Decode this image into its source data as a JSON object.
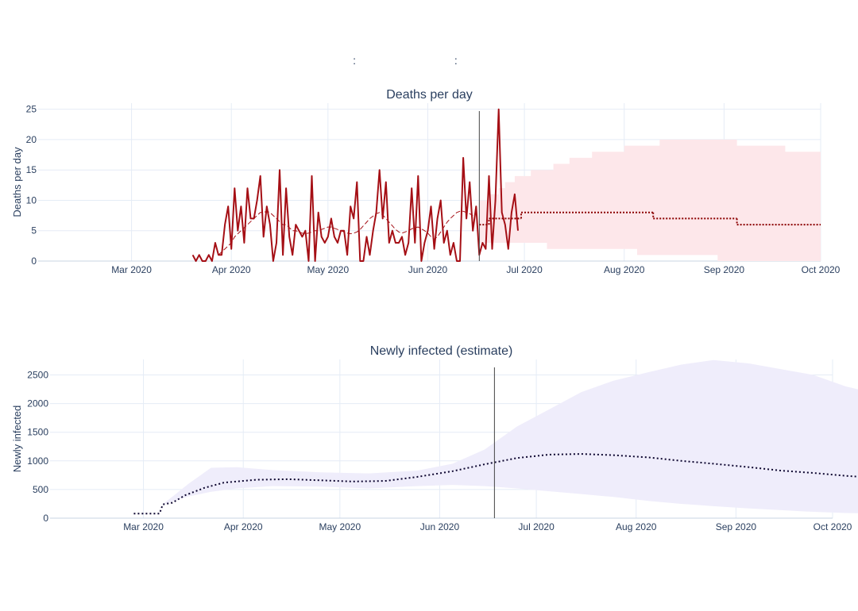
{
  "page": {
    "title": ":      :"
  },
  "chart_data": [
    {
      "type": "line",
      "title": "Deaths per day",
      "ylabel": "Deaths per day",
      "xlabel": "",
      "xrange": [
        "2020-02-01",
        "2020-10-01"
      ],
      "ylim": [
        0,
        26
      ],
      "y_ticks": [
        0,
        5,
        10,
        15,
        20,
        25
      ],
      "x_ticks": [
        {
          "date": "2020-03-01",
          "label": "Mar 2020"
        },
        {
          "date": "2020-04-01",
          "label": "Apr 2020"
        },
        {
          "date": "2020-05-01",
          "label": "May 2020"
        },
        {
          "date": "2020-06-01",
          "label": "Jun 2020"
        },
        {
          "date": "2020-07-01",
          "label": "Jul 2020"
        },
        {
          "date": "2020-08-01",
          "label": "Aug 2020"
        },
        {
          "date": "2020-09-01",
          "label": "Sep 2020"
        },
        {
          "date": "2020-10-01",
          "label": "Oct 2020"
        }
      ],
      "vline_date": "2020-06-17",
      "grid": true,
      "colors": {
        "observed": "#a50f15",
        "projection": "#8b0000",
        "band": "#fde7ea"
      },
      "series": [
        {
          "style": "solid",
          "start": "2020-03-20",
          "values": [
            1,
            0,
            1,
            0,
            0,
            1,
            0,
            3,
            1,
            1,
            6,
            9,
            2,
            12,
            5,
            9,
            3,
            12,
            7,
            7,
            10,
            14,
            4,
            9,
            6,
            0,
            3,
            15,
            1,
            12,
            4,
            1,
            6,
            5,
            4,
            5,
            0,
            14,
            0,
            8,
            4,
            3,
            4,
            7,
            4,
            3,
            5,
            5,
            1,
            9,
            7,
            13,
            0,
            0,
            4,
            1,
            5,
            8,
            15,
            7,
            13,
            3,
            5,
            3,
            3,
            4,
            1,
            3,
            12,
            3,
            14,
            0,
            3,
            5,
            9,
            2,
            7,
            10,
            3,
            5,
            1,
            3,
            0,
            0,
            17,
            7,
            13,
            5,
            9,
            1,
            3,
            2,
            14,
            2,
            10,
            25,
            8,
            6,
            2,
            8,
            11,
            5
          ]
        },
        {
          "style": "dashed",
          "start": "2020-03-28",
          "values": [
            1,
            1.5,
            2,
            2.5,
            3,
            4,
            4.5,
            5,
            5.5,
            6,
            6.5,
            7,
            7.5,
            8,
            8,
            8.2,
            8,
            7.5,
            7,
            6.5,
            6,
            6,
            5.5,
            5,
            5,
            4.8,
            4.6,
            4.5,
            4.6,
            4.8,
            5,
            5,
            5.2,
            5.4,
            5.6,
            5.6,
            5.4,
            5.2,
            5,
            4.8,
            4.6,
            4.5,
            4.6,
            4.8,
            5.2,
            5.8,
            6.4,
            7,
            7.4,
            7.8,
            8,
            7.6,
            7,
            6.4,
            5.8,
            5.2,
            4.8,
            4.6,
            4.8,
            5,
            5.3,
            5.5,
            5.6,
            5.3,
            5,
            4.6,
            4,
            3.6,
            4,
            4.8,
            5.6,
            6.4,
            7,
            7.5,
            8,
            8.2,
            8.2,
            8,
            7.8,
            7.5
          ]
        }
      ],
      "projection": [
        {
          "from": "2020-06-17",
          "to": "2020-06-20",
          "value": 6
        },
        {
          "from": "2020-06-20",
          "to": "2020-06-30",
          "value": 7
        },
        {
          "from": "2020-06-30",
          "to": "2020-08-10",
          "value": 8
        },
        {
          "from": "2020-08-10",
          "to": "2020-09-05",
          "value": 7
        },
        {
          "from": "2020-09-05",
          "to": "2020-10-01",
          "value": 6
        }
      ],
      "band": {
        "upper": [
          [
            "2020-06-17",
            10
          ],
          [
            "2020-06-20",
            11
          ],
          [
            "2020-06-23",
            12
          ],
          [
            "2020-06-25",
            13
          ],
          [
            "2020-06-28",
            14
          ],
          [
            "2020-07-03",
            15
          ],
          [
            "2020-07-10",
            16
          ],
          [
            "2020-07-15",
            17
          ],
          [
            "2020-07-22",
            18
          ],
          [
            "2020-08-01",
            19
          ],
          [
            "2020-08-12",
            20
          ],
          [
            "2020-09-05",
            19
          ],
          [
            "2020-09-20",
            18
          ],
          [
            "2020-09-30",
            18
          ],
          [
            "2020-10-01",
            17
          ]
        ],
        "lower": [
          [
            "2020-06-17",
            3
          ],
          [
            "2020-07-08",
            2
          ],
          [
            "2020-08-05",
            1
          ],
          [
            "2020-08-30",
            0
          ],
          [
            "2020-10-01",
            0
          ]
        ]
      }
    },
    {
      "type": "line",
      "title": "Newly infected (estimate)",
      "ylabel": "Newly infected",
      "xlabel": "",
      "xrange": [
        "2020-02-01",
        "2020-10-01"
      ],
      "ylim": [
        0,
        2770
      ],
      "y_ticks": [
        0,
        500,
        1000,
        1500,
        2000,
        2500
      ],
      "x_ticks": [
        {
          "date": "2020-03-01",
          "label": "Mar 2020"
        },
        {
          "date": "2020-04-01",
          "label": "Apr 2020"
        },
        {
          "date": "2020-05-01",
          "label": "May 2020"
        },
        {
          "date": "2020-06-01",
          "label": "Jun 2020"
        },
        {
          "date": "2020-07-01",
          "label": "Jul 2020"
        },
        {
          "date": "2020-08-01",
          "label": "Aug 2020"
        },
        {
          "date": "2020-09-01",
          "label": "Sep 2020"
        },
        {
          "date": "2020-10-01",
          "label": "Oct 2020"
        }
      ],
      "vline_date": "2020-06-18",
      "grid": true,
      "colors": {
        "estimate": "#0d0630",
        "band": "#efedfb"
      },
      "series": [
        {
          "style": "dotted",
          "points": [
            [
              "2020-02-27",
              80
            ],
            [
              "2020-03-06",
              80
            ],
            [
              "2020-03-07",
              240
            ],
            [
              "2020-03-10",
              270
            ],
            [
              "2020-03-14",
              400
            ],
            [
              "2020-03-20",
              530
            ],
            [
              "2020-03-26",
              620
            ],
            [
              "2020-04-05",
              670
            ],
            [
              "2020-04-15",
              680
            ],
            [
              "2020-04-25",
              660
            ],
            [
              "2020-05-05",
              640
            ],
            [
              "2020-05-15",
              650
            ],
            [
              "2020-05-25",
              720
            ],
            [
              "2020-06-05",
              820
            ],
            [
              "2020-06-15",
              940
            ],
            [
              "2020-06-25",
              1050
            ],
            [
              "2020-07-05",
              1110
            ],
            [
              "2020-07-15",
              1120
            ],
            [
              "2020-07-25",
              1100
            ],
            [
              "2020-08-05",
              1060
            ],
            [
              "2020-08-15",
              1000
            ],
            [
              "2020-08-25",
              950
            ],
            [
              "2020-09-05",
              890
            ],
            [
              "2020-09-15",
              830
            ],
            [
              "2020-09-25",
              790
            ],
            [
              "2020-10-05",
              740
            ],
            [
              "2020-10-15",
              700
            ]
          ]
        }
      ],
      "band": {
        "upper": [
          [
            "2020-03-07",
            240
          ],
          [
            "2020-03-15",
            600
          ],
          [
            "2020-03-22",
            880
          ],
          [
            "2020-03-30",
            890
          ],
          [
            "2020-04-10",
            840
          ],
          [
            "2020-04-25",
            800
          ],
          [
            "2020-05-10",
            780
          ],
          [
            "2020-05-25",
            830
          ],
          [
            "2020-06-05",
            950
          ],
          [
            "2020-06-15",
            1200
          ],
          [
            "2020-06-25",
            1600
          ],
          [
            "2020-07-05",
            1900
          ],
          [
            "2020-07-15",
            2200
          ],
          [
            "2020-07-25",
            2400
          ],
          [
            "2020-08-05",
            2550
          ],
          [
            "2020-08-15",
            2680
          ],
          [
            "2020-08-25",
            2760
          ],
          [
            "2020-09-05",
            2700
          ],
          [
            "2020-09-15",
            2600
          ],
          [
            "2020-09-25",
            2500
          ],
          [
            "2020-10-05",
            2300
          ],
          [
            "2020-10-15",
            2170
          ]
        ],
        "lower": [
          [
            "2020-03-07",
            240
          ],
          [
            "2020-03-15",
            380
          ],
          [
            "2020-03-22",
            460
          ],
          [
            "2020-03-30",
            520
          ],
          [
            "2020-04-10",
            560
          ],
          [
            "2020-04-25",
            550
          ],
          [
            "2020-05-10",
            520
          ],
          [
            "2020-05-25",
            560
          ],
          [
            "2020-06-05",
            580
          ],
          [
            "2020-06-15",
            560
          ],
          [
            "2020-06-25",
            520
          ],
          [
            "2020-07-05",
            470
          ],
          [
            "2020-07-15",
            420
          ],
          [
            "2020-07-25",
            370
          ],
          [
            "2020-08-05",
            300
          ],
          [
            "2020-08-15",
            250
          ],
          [
            "2020-08-25",
            210
          ],
          [
            "2020-09-05",
            170
          ],
          [
            "2020-09-15",
            140
          ],
          [
            "2020-09-25",
            110
          ],
          [
            "2020-10-05",
            90
          ],
          [
            "2020-10-15",
            80
          ]
        ]
      }
    }
  ]
}
